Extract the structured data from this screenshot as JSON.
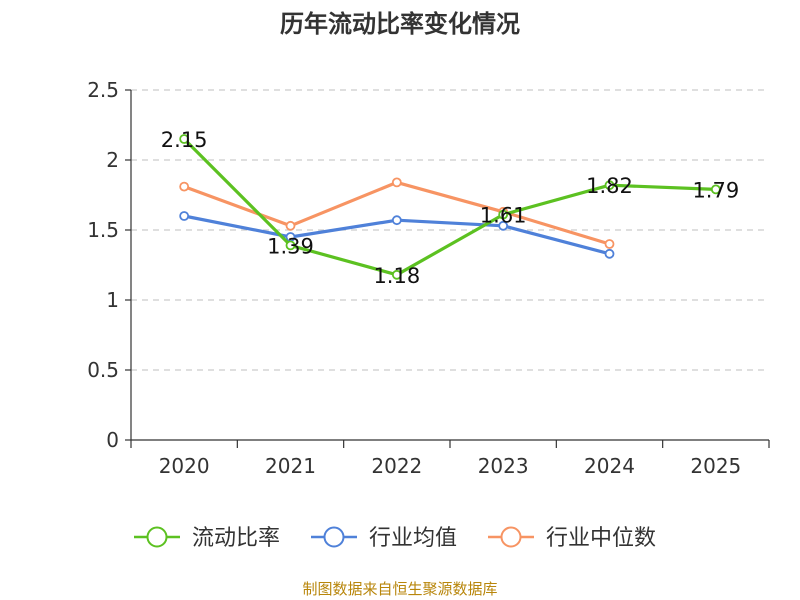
{
  "chart_data": {
    "type": "line",
    "title": "历年流动比率变化情况",
    "categories": [
      "2020",
      "2021",
      "2022",
      "2023",
      "2024",
      "2025"
    ],
    "ylim": [
      0,
      2.5
    ],
    "yticks": [
      "0",
      "0.5",
      "1",
      "1.5",
      "2",
      "2.5"
    ],
    "grid": true,
    "legend_position": "bottom",
    "series": [
      {
        "name": "流动比率",
        "color": "#5cc121",
        "values": [
          2.15,
          1.39,
          1.18,
          1.61,
          1.82,
          1.79
        ],
        "labels": [
          "2.15",
          "1.39",
          "1.18",
          "1.61",
          "1.82",
          "1.79"
        ]
      },
      {
        "name": "行业均值",
        "color": "#4f81d9",
        "values": [
          1.6,
          1.45,
          1.57,
          1.53,
          1.33,
          null
        ]
      },
      {
        "name": "行业中位数",
        "color": "#f79463",
        "values": [
          1.81,
          1.53,
          1.84,
          1.63,
          1.4,
          null
        ]
      }
    ]
  },
  "source": "制图数据来自恒生聚源数据库"
}
